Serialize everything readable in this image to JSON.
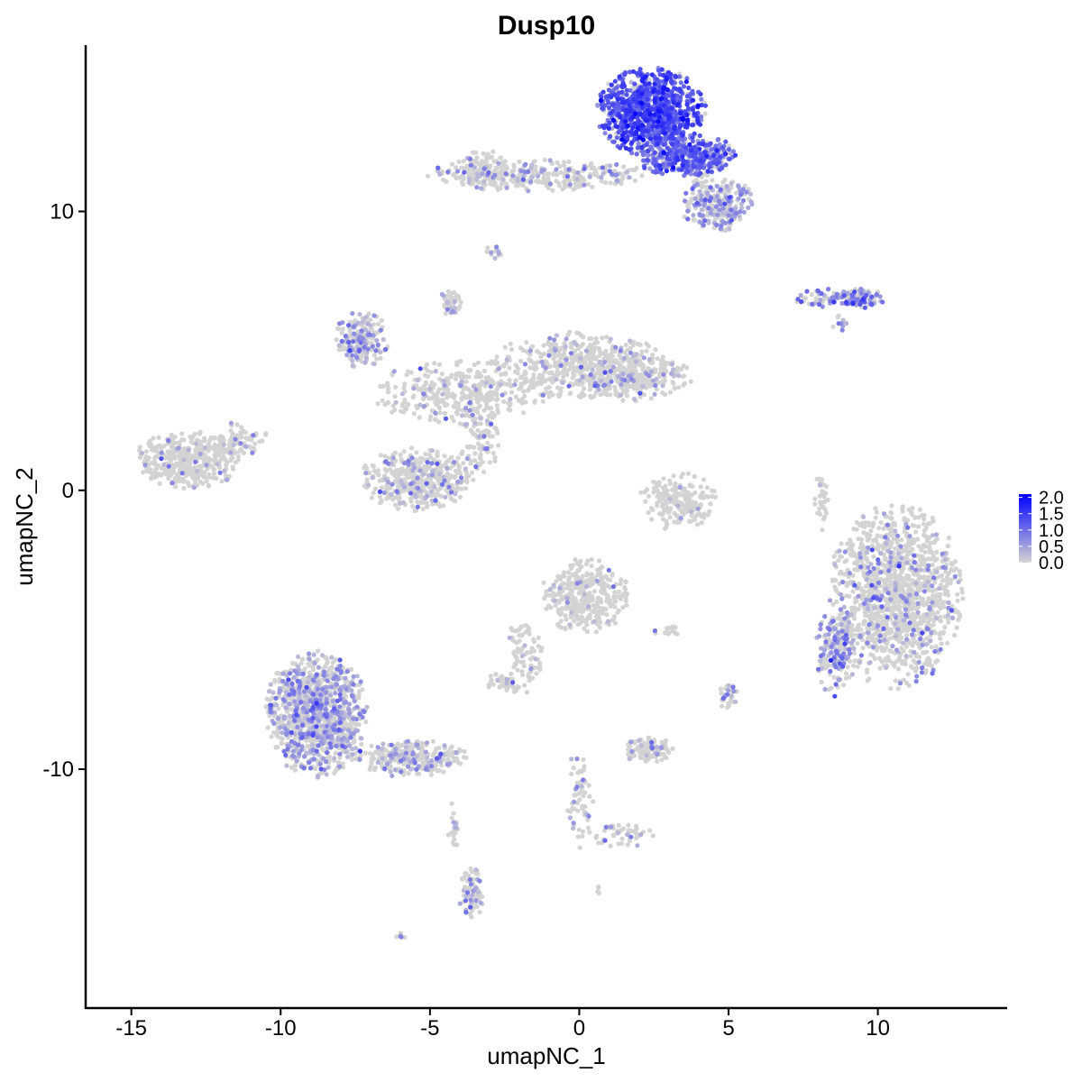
{
  "chart_data": {
    "type": "scatter",
    "title": "Dusp10",
    "xlabel": "umapNC_1",
    "ylabel": "umapNC_2",
    "xlim": [
      -16.5,
      14.3
    ],
    "ylim": [
      -18.5,
      15.9
    ],
    "x_ticks": [
      -15,
      -10,
      -5,
      0,
      5,
      10
    ],
    "x_tick_labels": [
      "-15",
      "-10",
      "-5",
      "0",
      "5",
      "10"
    ],
    "y_ticks": [
      -10,
      0,
      10
    ],
    "y_tick_labels": [
      "-10",
      "0",
      "10"
    ],
    "grid": false,
    "legend": {
      "placement": "right",
      "type": "colorbar",
      "range": [
        0,
        2.1
      ],
      "ticks": [
        0.0,
        0.5,
        1.0,
        1.5,
        2.0
      ],
      "tick_labels": [
        "0.0",
        "0.5",
        "1.0",
        "1.5",
        "2.0"
      ],
      "low_color": "#d3d3d3",
      "high_color": "#0000ff"
    },
    "clusters": [
      {
        "cx": 2.4,
        "cy": 13.6,
        "rx": 1.6,
        "ry": 1.4,
        "n": 900,
        "expr_prob": 0.9,
        "expr_mean": 1.2
      },
      {
        "cx": 3.6,
        "cy": 12.0,
        "rx": 1.5,
        "ry": 0.7,
        "n": 400,
        "expr_prob": 0.75,
        "expr_mean": 1.0
      },
      {
        "cx": 4.6,
        "cy": 10.3,
        "rx": 1.1,
        "ry": 0.9,
        "n": 250,
        "expr_prob": 0.4,
        "expr_mean": 0.6
      },
      {
        "cx": -1.5,
        "cy": 11.3,
        "rx": 3.4,
        "ry": 0.5,
        "n": 320,
        "expr_prob": 0.2,
        "expr_mean": 0.5
      },
      {
        "cx": -3.2,
        "cy": 11.5,
        "rx": 0.9,
        "ry": 0.6,
        "n": 100,
        "expr_prob": 0.15,
        "expr_mean": 0.4
      },
      {
        "cx": -2.8,
        "cy": 8.5,
        "rx": 0.3,
        "ry": 0.3,
        "n": 12,
        "expr_prob": 0.5,
        "expr_mean": 0.6
      },
      {
        "cx": 8.6,
        "cy": 6.9,
        "rx": 1.6,
        "ry": 0.3,
        "n": 110,
        "expr_prob": 0.5,
        "expr_mean": 0.7
      },
      {
        "cx": 9.4,
        "cy": 6.9,
        "rx": 0.6,
        "ry": 0.35,
        "n": 50,
        "expr_prob": 0.75,
        "expr_mean": 0.9
      },
      {
        "cx": 8.8,
        "cy": 6.0,
        "rx": 0.3,
        "ry": 0.3,
        "n": 10,
        "expr_prob": 0.5,
        "expr_mean": 0.6
      },
      {
        "cx": -7.3,
        "cy": 5.4,
        "rx": 0.8,
        "ry": 0.9,
        "n": 200,
        "expr_prob": 0.4,
        "expr_mean": 0.5
      },
      {
        "cx": -4.0,
        "cy": 3.5,
        "rx": 2.6,
        "ry": 1.0,
        "n": 350,
        "expr_prob": 0.07,
        "expr_mean": 0.4
      },
      {
        "cx": 0.0,
        "cy": 4.5,
        "rx": 2.6,
        "ry": 1.1,
        "n": 500,
        "expr_prob": 0.12,
        "expr_mean": 0.4
      },
      {
        "cx": 1.8,
        "cy": 4.0,
        "rx": 1.8,
        "ry": 0.7,
        "n": 250,
        "expr_prob": 0.15,
        "expr_mean": 0.4
      },
      {
        "cx": -4.3,
        "cy": 6.8,
        "rx": 0.3,
        "ry": 0.5,
        "n": 40,
        "expr_prob": 0.3,
        "expr_mean": 0.4
      },
      {
        "cx": -3.3,
        "cy": 1.8,
        "rx": 0.6,
        "ry": 1.2,
        "n": 100,
        "expr_prob": 0.1,
        "expr_mean": 0.4
      },
      {
        "cx": -5.4,
        "cy": 0.4,
        "rx": 1.7,
        "ry": 1.0,
        "n": 450,
        "expr_prob": 0.12,
        "expr_mean": 0.4
      },
      {
        "cx": -13.1,
        "cy": 1.1,
        "rx": 1.6,
        "ry": 0.9,
        "n": 400,
        "expr_prob": 0.08,
        "expr_mean": 0.4
      },
      {
        "cx": -11.3,
        "cy": 1.8,
        "rx": 0.8,
        "ry": 0.6,
        "n": 70,
        "expr_prob": 0.08,
        "expr_mean": 0.4
      },
      {
        "cx": 3.3,
        "cy": -0.4,
        "rx": 1.2,
        "ry": 0.9,
        "n": 200,
        "expr_prob": 0.03,
        "expr_mean": 0.3
      },
      {
        "cx": 8.1,
        "cy": -0.3,
        "rx": 0.2,
        "ry": 1.0,
        "n": 35,
        "expr_prob": 0.15,
        "expr_mean": 0.4
      },
      {
        "cx": 10.6,
        "cy": -3.8,
        "rx": 2.0,
        "ry": 2.9,
        "n": 1300,
        "expr_prob": 0.15,
        "expr_mean": 0.5
      },
      {
        "cx": 8.6,
        "cy": -5.8,
        "rx": 0.6,
        "ry": 1.4,
        "n": 180,
        "expr_prob": 0.5,
        "expr_mean": 0.6
      },
      {
        "cx": 0.2,
        "cy": -3.8,
        "rx": 1.3,
        "ry": 1.2,
        "n": 350,
        "expr_prob": 0.08,
        "expr_mean": 0.4
      },
      {
        "cx": -1.8,
        "cy": -6.0,
        "rx": 0.6,
        "ry": 1.3,
        "n": 80,
        "expr_prob": 0.05,
        "expr_mean": 0.3
      },
      {
        "cx": -2.5,
        "cy": -6.9,
        "rx": 0.6,
        "ry": 0.3,
        "n": 40,
        "expr_prob": 0.1,
        "expr_mean": 0.3
      },
      {
        "cx": -8.8,
        "cy": -8.0,
        "rx": 1.5,
        "ry": 2.0,
        "n": 1100,
        "expr_prob": 0.35,
        "expr_mean": 0.5
      },
      {
        "cx": -5.6,
        "cy": -9.6,
        "rx": 1.7,
        "ry": 0.6,
        "n": 280,
        "expr_prob": 0.2,
        "expr_mean": 0.5
      },
      {
        "cx": -3.6,
        "cy": -14.5,
        "rx": 0.4,
        "ry": 0.9,
        "n": 80,
        "expr_prob": 0.2,
        "expr_mean": 0.5
      },
      {
        "cx": 2.3,
        "cy": -9.3,
        "rx": 0.8,
        "ry": 0.4,
        "n": 120,
        "expr_prob": 0.1,
        "expr_mean": 0.4
      },
      {
        "cx": 0.0,
        "cy": -11.1,
        "rx": 0.4,
        "ry": 1.6,
        "n": 60,
        "expr_prob": 0.15,
        "expr_mean": 0.4
      },
      {
        "cx": 1.5,
        "cy": -12.4,
        "rx": 1.1,
        "ry": 0.4,
        "n": 50,
        "expr_prob": 0.15,
        "expr_mean": 0.4
      },
      {
        "cx": 5.0,
        "cy": -7.4,
        "rx": 0.3,
        "ry": 0.4,
        "n": 30,
        "expr_prob": 0.3,
        "expr_mean": 0.5
      },
      {
        "cx": 3.0,
        "cy": -5.1,
        "rx": 0.5,
        "ry": 0.2,
        "n": 14,
        "expr_prob": 0.2,
        "expr_mean": 0.4
      },
      {
        "cx": -4.2,
        "cy": -12.0,
        "rx": 0.2,
        "ry": 0.9,
        "n": 20,
        "expr_prob": 0.1,
        "expr_mean": 0.4
      },
      {
        "cx": -6.0,
        "cy": -16.0,
        "rx": 0.15,
        "ry": 0.15,
        "n": 5,
        "expr_prob": 0.4,
        "expr_mean": 0.5
      },
      {
        "cx": 0.6,
        "cy": -14.3,
        "rx": 0.15,
        "ry": 0.15,
        "n": 4,
        "expr_prob": 0.2,
        "expr_mean": 0.4
      }
    ]
  }
}
